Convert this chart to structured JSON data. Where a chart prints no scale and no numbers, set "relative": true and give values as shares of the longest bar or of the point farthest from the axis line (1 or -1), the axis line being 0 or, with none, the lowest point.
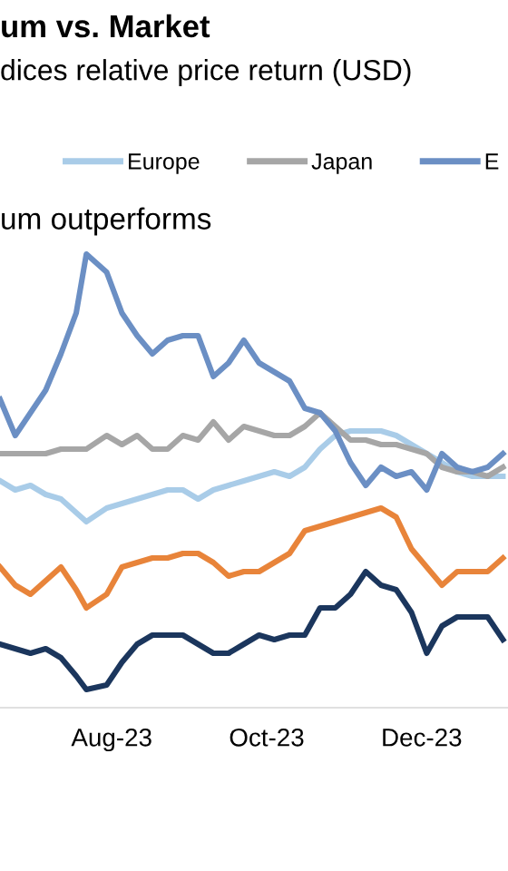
{
  "chart_data": {
    "type": "line",
    "title": "um vs. Market",
    "subtitle": "dices relative price return (USD)",
    "annotations": [
      "um outperforms"
    ],
    "relative": true,
    "legend": "top",
    "grid": false,
    "marker": "none",
    "line_style": "solid",
    "xlim": [
      "2023-06-18",
      "2024-01-04"
    ],
    "xticks": [
      {
        "value": "2023-08-01",
        "label": "Aug-23"
      },
      {
        "value": "2023-10-01",
        "label": "Oct-23"
      },
      {
        "value": "2023-12-01",
        "label": "Dec-23"
      }
    ],
    "x": [
      "2023-06-18",
      "2023-06-24",
      "2023-06-30",
      "2023-07-06",
      "2023-07-12",
      "2023-07-18",
      "2023-07-22",
      "2023-07-30",
      "2023-08-05",
      "2023-08-11",
      "2023-08-17",
      "2023-08-23",
      "2023-08-29",
      "2023-09-04",
      "2023-09-10",
      "2023-09-16",
      "2023-09-22",
      "2023-09-28",
      "2023-10-04",
      "2023-10-10",
      "2023-10-16",
      "2023-10-22",
      "2023-10-28",
      "2023-11-03",
      "2023-11-09",
      "2023-11-15",
      "2023-11-21",
      "2023-11-27",
      "2023-12-03",
      "2023-12-09",
      "2023-12-15",
      "2023-12-21",
      "2023-12-27",
      "2024-01-02"
    ],
    "series": [
      {
        "name": "Europe",
        "color": "#a9cce8",
        "values": [
          0.5,
          0.48,
          0.49,
          0.47,
          0.46,
          0.43,
          0.41,
          0.44,
          0.45,
          0.46,
          0.47,
          0.48,
          0.48,
          0.46,
          0.48,
          0.49,
          0.5,
          0.51,
          0.52,
          0.51,
          0.53,
          0.57,
          0.6,
          0.61,
          0.61,
          0.61,
          0.6,
          0.58,
          0.56,
          0.54,
          0.52,
          0.51,
          0.51,
          0.51
        ]
      },
      {
        "name": "Japan",
        "color": "#a6a6a6",
        "values": [
          0.56,
          0.56,
          0.56,
          0.56,
          0.57,
          0.57,
          0.57,
          0.6,
          0.58,
          0.6,
          0.57,
          0.57,
          0.6,
          0.59,
          0.63,
          0.59,
          0.62,
          0.61,
          0.6,
          0.6,
          0.62,
          0.65,
          0.62,
          0.59,
          0.59,
          0.58,
          0.58,
          0.57,
          0.56,
          0.53,
          0.52,
          0.52,
          0.51,
          0.53
        ]
      },
      {
        "name": "E",
        "color": "#6b8fc4",
        "values": [
          0.68,
          0.6,
          0.65,
          0.7,
          0.78,
          0.87,
          1.0,
          0.96,
          0.87,
          0.82,
          0.78,
          0.81,
          0.82,
          0.82,
          0.73,
          0.76,
          0.81,
          0.76,
          0.74,
          0.72,
          0.66,
          0.65,
          0.61,
          0.54,
          0.49,
          0.53,
          0.51,
          0.52,
          0.48,
          0.56,
          0.53,
          0.52,
          0.53,
          0.56
        ]
      },
      {
        "color": "#e8843a",
        "values": [
          0.31,
          0.27,
          0.25,
          0.28,
          0.31,
          0.26,
          0.22,
          0.25,
          0.31,
          0.32,
          0.33,
          0.33,
          0.34,
          0.34,
          0.32,
          0.29,
          0.3,
          0.3,
          0.32,
          0.34,
          0.39,
          0.4,
          0.41,
          0.42,
          0.43,
          0.44,
          0.42,
          0.35,
          0.31,
          0.27,
          0.3,
          0.3,
          0.3,
          0.33
        ]
      },
      {
        "color": "#1b365d",
        "values": [
          0.14,
          0.13,
          0.12,
          0.13,
          0.11,
          0.07,
          0.04,
          0.05,
          0.1,
          0.14,
          0.16,
          0.16,
          0.16,
          0.14,
          0.12,
          0.12,
          0.14,
          0.16,
          0.15,
          0.16,
          0.16,
          0.22,
          0.22,
          0.25,
          0.3,
          0.27,
          0.26,
          0.21,
          0.12,
          0.18,
          0.2,
          0.2,
          0.2,
          0.15
        ]
      }
    ]
  }
}
